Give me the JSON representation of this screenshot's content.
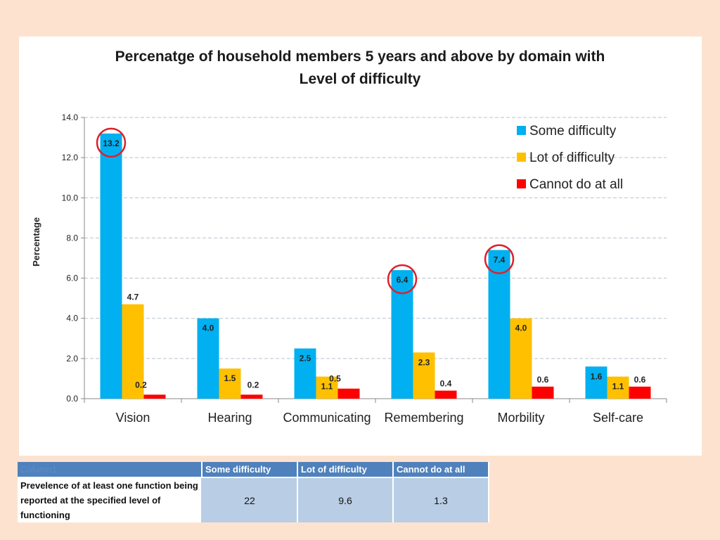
{
  "chart_data": {
    "type": "bar",
    "title": [
      "Percenatge of household members 5 years and above by domain with",
      "Level of difficulty"
    ],
    "xlabel": "",
    "ylabel": "Percentage",
    "ylim": [
      0,
      14
    ],
    "yticks": [
      "0.0",
      "2.0",
      "4.0",
      "6.0",
      "8.0",
      "10.0",
      "12.0",
      "14.0"
    ],
    "grid": true,
    "legend_position": "top-right",
    "categories": [
      "Vision",
      "Hearing",
      "Communicating",
      "Remembering",
      "Morbility",
      "Self-care"
    ],
    "series": [
      {
        "name": "Some difficulty",
        "color": "#00b0f0",
        "values": [
          13.2,
          4.0,
          2.5,
          6.4,
          7.4,
          1.6
        ],
        "labels": [
          "13.2",
          "4.0",
          "2.5",
          "6.4",
          "7.4",
          "1.6"
        ]
      },
      {
        "name": "Lot of difficulty",
        "color": "#ffc000",
        "values": [
          4.7,
          1.5,
          1.1,
          2.3,
          4.0,
          1.1
        ],
        "labels": [
          "4.7",
          "1.5",
          "1.1",
          "2.3",
          "4.0",
          "1.1"
        ]
      },
      {
        "name": "Cannot do at all",
        "color": "#ff0000",
        "values": [
          0.2,
          0.2,
          0.5,
          0.4,
          0.6,
          0.6
        ],
        "labels": [
          "0.2",
          "0.2",
          "0.5",
          "0.4",
          "0.6",
          "0.6"
        ]
      }
    ],
    "highlighted_bars": [
      "Vision",
      "Remembering",
      "Morbility"
    ],
    "highlight_color": "#e0202a"
  },
  "table": {
    "corner": "Column1",
    "headers": [
      "Some difficulty",
      "Lot of difficulty",
      "Cannot do at all"
    ],
    "row_label": "Prevelence of at least one function being reported at the specified level of functioning",
    "values": [
      "22",
      "9.6",
      "1.3"
    ]
  }
}
